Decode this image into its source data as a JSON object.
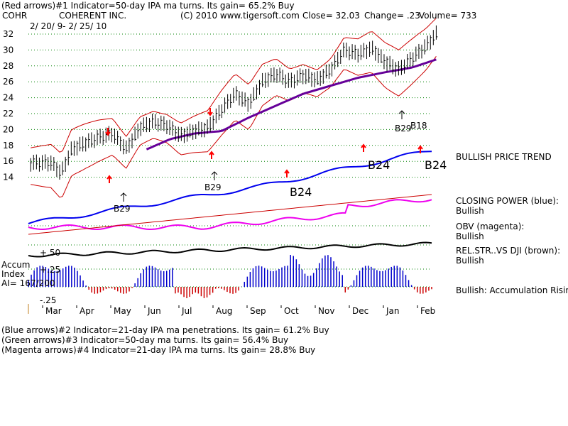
{
  "header": {
    "line1": "(Red arrows)#1 Indicator=50-day IPA ma turns. Its gain= 65.2% Buy",
    "symbol": "COHR",
    "company": "COHERENT INC.",
    "copyright": "(C) 2010 www.tigersoft.com",
    "close": "Close=  32.03",
    "change": "Change= .23",
    "volume": "Volume= 733",
    "date_range": "2/ 20/ 9- 2/ 25/ 10"
  },
  "right_panel": {
    "price_trend": "BULLISH PRICE TREND",
    "closing_power_title": "CLOSING POWER (blue):",
    "closing_power_value": "Bullish",
    "obv_title": "OBV (magenta):",
    "obv_value": "Bullish",
    "relstr_title": "REL.STR..VS DJI (brown):",
    "relstr_value": "Bullish",
    "accum_status": "Bullish: Accumulation Rising"
  },
  "accum_index": {
    "label_line1": "Accum",
    "label_line2": "Index",
    "label_line3": "AI= 167/200",
    "tick_plus50": "+.50",
    "tick_plus25": "+.25",
    "tick_minus25": "-.25"
  },
  "signal_labels": {
    "b29_a": "B29",
    "b29_b": "B29",
    "b29_c": "B29",
    "b18": "B18",
    "b24_a": "B24",
    "b24_b": "B24",
    "b24_c": "B24"
  },
  "footer": {
    "line1": "(Blue arrows)#2 Indicator=21-day IPA ma penetrations. Its gain= 61.2% Buy",
    "line2": "(Green arrows)#3 Indicator=50-day ma turns. Its gain= 56.4% Buy",
    "line3": "(Magenta arrows)#4 Indicator=21-day IPA ma turns. Its gain= 28.8% Buy"
  },
  "colors": {
    "price_bars": "#000000",
    "upper_band": "#cc0000",
    "ma50": "#660099",
    "closing_power": "#0000ee",
    "obv": "#ee00ee",
    "relstr": "#000000",
    "accum_pos": "#0000cc",
    "accum_neg": "#cc0000",
    "grid": "#008000",
    "arrow_red": "#ff0000"
  },
  "chart_data": {
    "type": "line",
    "title": "COHR COHERENT INC.",
    "xlabel": "",
    "ylabel": "",
    "months": [
      "Mar",
      "Apr",
      "May",
      "Jun",
      "Jul",
      "Aug",
      "Sep",
      "Oct",
      "Nov",
      "Dec",
      "Jan",
      "Feb"
    ],
    "y_ticks": [
      14,
      16,
      18,
      20,
      22,
      24,
      26,
      28,
      30,
      32
    ],
    "ylim": [
      13,
      33
    ],
    "price_series": {
      "name": "Close",
      "x_month_index": [
        0,
        0.3,
        0.6,
        1.0,
        1.4,
        1.8,
        2.2,
        2.6,
        3.0,
        3.4,
        3.8,
        4.2,
        4.6,
        5.0,
        5.4,
        5.8,
        6.2,
        6.6,
        7.0,
        7.4,
        7.8,
        8.2,
        8.6,
        9.0,
        9.4,
        9.8,
        10.2,
        10.6,
        11.0,
        11.3
      ],
      "values": [
        15.8,
        14.5,
        17.5,
        18.3,
        19.0,
        19.5,
        17.5,
        20.2,
        21.0,
        20.5,
        19.2,
        19.8,
        20.2,
        22.5,
        24.5,
        23.2,
        26.0,
        27.0,
        26.0,
        26.8,
        26.2,
        27.5,
        30.0,
        29.5,
        30.2,
        28.5,
        27.5,
        29.0,
        30.5,
        32.0
      ]
    },
    "ma50_series": {
      "name": "50-day MA",
      "x_month_index": [
        2.8,
        3.5,
        4.2,
        5.0,
        5.8,
        6.6,
        7.4,
        8.2,
        9.0,
        9.8,
        10.6,
        11.3
      ],
      "values": [
        17.5,
        18.8,
        19.5,
        19.8,
        21.5,
        23.0,
        24.5,
        25.5,
        26.5,
        27.2,
        27.8,
        28.8
      ]
    },
    "closing_power": {
      "name": "Closing Power (blue)",
      "status": "Bullish"
    },
    "obv": {
      "name": "OBV (magenta)",
      "status": "Bullish"
    },
    "rel_strength": {
      "name": "Rel.Str. vs DJI (brown)",
      "status": "Bullish"
    },
    "accumulation_index": {
      "name": "Accum Index",
      "range": [
        -0.25,
        0.5
      ]
    }
  }
}
